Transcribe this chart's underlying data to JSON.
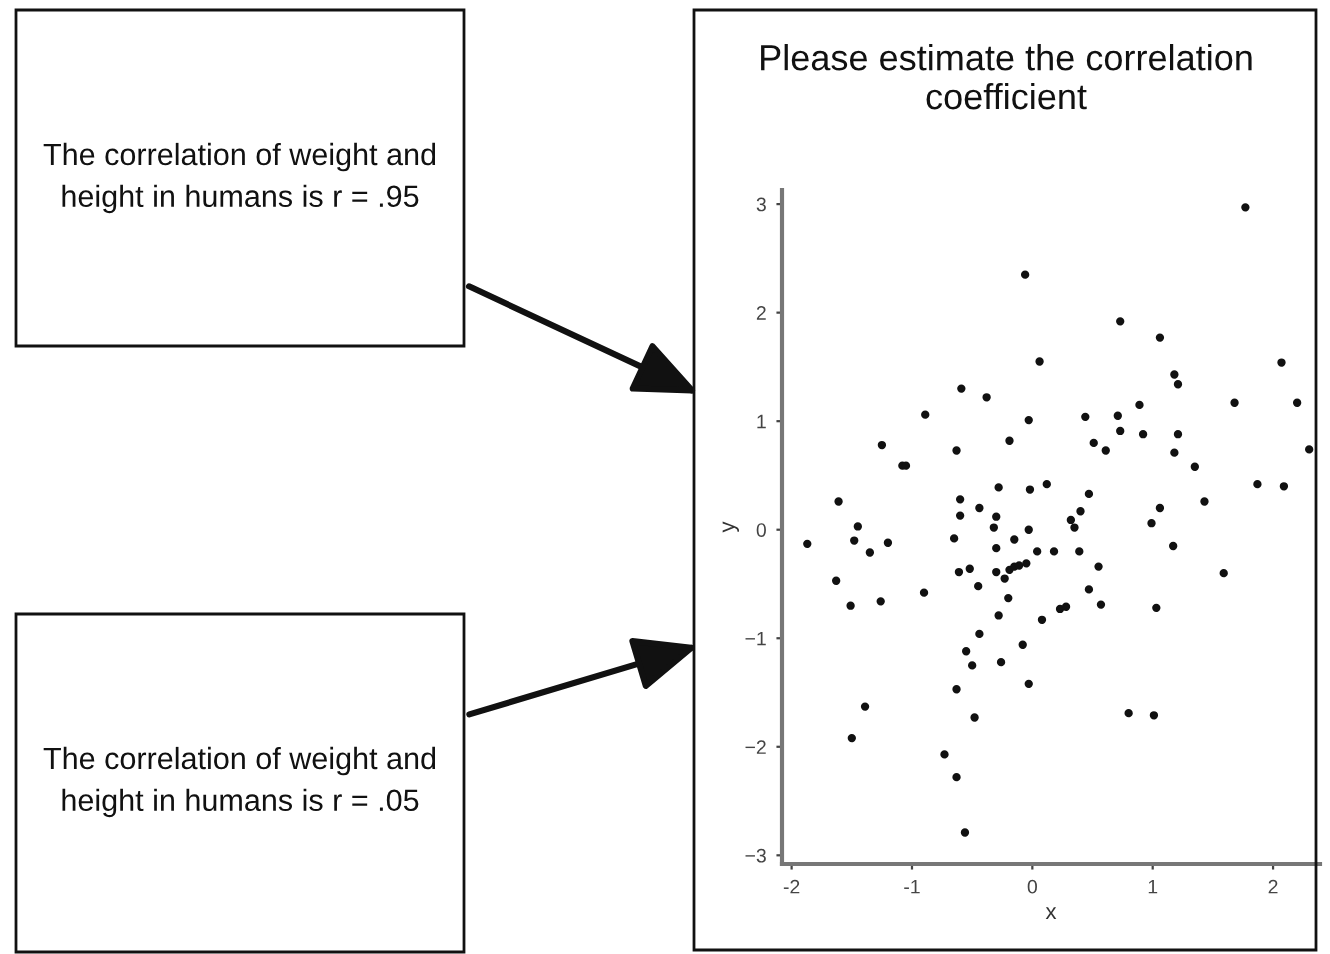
{
  "chart_data": {
    "type": "scatter",
    "title": "Please estimate the correlation coefficient",
    "xlabel": "x",
    "ylabel": "y",
    "annotations": [
      "The correlation of weight and height in humans is r = .95",
      "The correlation of weight and height in humans is r = .05"
    ],
    "x": [
      -0.06,
      -0.59,
      -0.38,
      -0.89,
      -0.03,
      -1.25,
      -0.63,
      -0.19,
      -1.08,
      -1.05,
      -0.28,
      -0.02,
      -1.61,
      -0.6,
      -0.44,
      -0.6,
      -0.3,
      -1.45,
      -0.32,
      -0.03,
      -0.65,
      -1.48,
      -1.2,
      -1.87,
      -1.35,
      -0.3,
      -0.15,
      -1.63,
      -1.51,
      -1.26,
      -0.9,
      -0.61,
      -0.52,
      -0.45,
      -0.3,
      -0.23,
      -0.19,
      -0.15,
      -0.11,
      -0.05,
      -0.2,
      -0.28,
      -0.44,
      -0.08,
      -0.55,
      -0.5,
      -0.26,
      -0.03,
      -0.63,
      -0.48,
      -1.39,
      -1.5,
      -0.73,
      -0.63,
      -0.56,
      1.77,
      0.73,
      1.06,
      0.06,
      2.07,
      1.18,
      1.21,
      0.89,
      1.68,
      2.2,
      0.44,
      0.71,
      0.73,
      0.92,
      1.21,
      2.3,
      0.51,
      0.61,
      1.18,
      1.35,
      1.87,
      2.09,
      0.12,
      0.47,
      0.4,
      0.32,
      0.35,
      1.06,
      1.43,
      0.99,
      1.17,
      0.04,
      0.18,
      0.39,
      1.59,
      0.55,
      0.47,
      0.57,
      0.23,
      0.28,
      1.03,
      0.08,
      0.8,
      1.01
    ],
    "values": [
      2.35,
      1.3,
      1.22,
      1.06,
      1.01,
      0.78,
      0.73,
      0.82,
      0.59,
      0.59,
      0.39,
      0.37,
      0.26,
      0.28,
      0.2,
      0.13,
      0.12,
      0.03,
      0.02,
      0.0,
      -0.08,
      -0.1,
      -0.12,
      -0.13,
      -0.21,
      -0.17,
      -0.09,
      -0.47,
      -0.7,
      -0.66,
      -0.58,
      -0.39,
      -0.36,
      -0.52,
      -0.39,
      -0.45,
      -0.37,
      -0.34,
      -0.33,
      -0.31,
      -0.63,
      -0.79,
      -0.96,
      -1.06,
      -1.12,
      -1.25,
      -1.22,
      -1.42,
      -1.47,
      -1.73,
      -1.63,
      -1.92,
      -2.07,
      -2.28,
      -2.79,
      2.97,
      1.92,
      1.77,
      1.55,
      1.54,
      1.43,
      1.34,
      1.15,
      1.17,
      1.17,
      1.04,
      1.05,
      0.91,
      0.88,
      0.88,
      0.74,
      0.8,
      0.73,
      0.71,
      0.58,
      0.42,
      0.4,
      0.42,
      0.33,
      0.17,
      0.09,
      0.02,
      0.2,
      0.26,
      0.06,
      -0.15,
      -0.2,
      -0.2,
      -0.2,
      -0.4,
      -0.34,
      -0.55,
      -0.69,
      -0.73,
      -0.71,
      -0.72,
      -0.83,
      -1.69,
      -1.71
    ],
    "color": "#111111",
    "marker": "circle",
    "grid": false,
    "legend": false,
    "xlim": [
      -2.08,
      2.39
    ],
    "ylim": [
      -3.08,
      3.13
    ],
    "xticks": [
      -2,
      -1,
      0,
      1,
      2
    ],
    "yticks": [
      -3,
      -2,
      -1,
      0,
      1,
      2,
      3
    ]
  }
}
